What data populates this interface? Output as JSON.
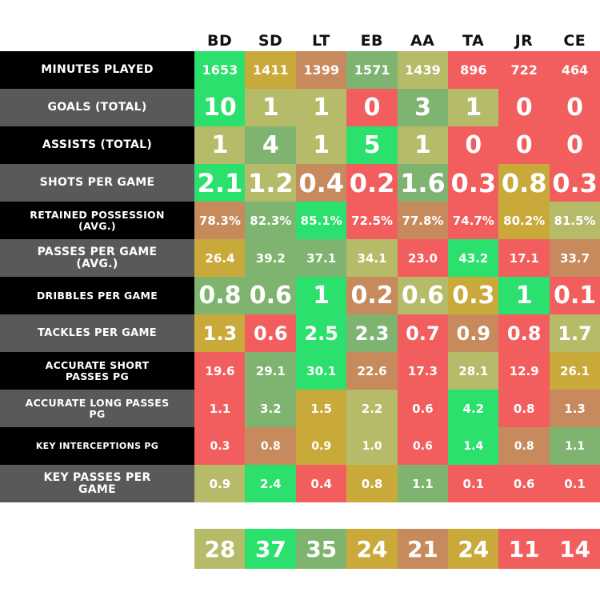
{
  "chart_data": {
    "type": "table",
    "players": [
      "BD",
      "SD",
      "LT",
      "EB",
      "AA",
      "TA",
      "JR",
      "CE"
    ],
    "rows": [
      {
        "label": "Minutes Played",
        "values": [
          "1653",
          "1411",
          "1399",
          "1571",
          "1439",
          "896",
          "722",
          "464"
        ],
        "colors": [
          "#2be06d",
          "#c9a93a",
          "#c78a5c",
          "#7eb46f",
          "#b6bb6a",
          "#f25d5d",
          "#f25d5d",
          "#f25d5d"
        ]
      },
      {
        "label": "Goals (Total)",
        "values": [
          "10",
          "1",
          "1",
          "0",
          "3",
          "1",
          "0",
          "0"
        ],
        "colors": [
          "#2be06d",
          "#b6bb6a",
          "#b6bb6a",
          "#f25d5d",
          "#7eb46f",
          "#b6bb6a",
          "#f25d5d",
          "#f25d5d"
        ]
      },
      {
        "label": "Assists (Total)",
        "values": [
          "1",
          "4",
          "1",
          "5",
          "1",
          "0",
          "0",
          "0"
        ],
        "colors": [
          "#b6bb6a",
          "#7eb46f",
          "#b6bb6a",
          "#2be06d",
          "#b6bb6a",
          "#f25d5d",
          "#f25d5d",
          "#f25d5d"
        ]
      },
      {
        "label": "Shots Per Game",
        "values": [
          "2.1",
          "1.2",
          "0.4",
          "0.2",
          "1.6",
          "0.3",
          "0.8",
          "0.3"
        ],
        "colors": [
          "#2be06d",
          "#b6bb6a",
          "#c78a5c",
          "#f25d5d",
          "#7eb46f",
          "#f25d5d",
          "#c9a93a",
          "#f25d5d"
        ]
      },
      {
        "label": "Retained Possession (Avg.)",
        "values": [
          "78.3%",
          "82.3%",
          "85.1%",
          "72.5%",
          "77.8%",
          "74.7%",
          "80.2%",
          "81.5%"
        ],
        "colors": [
          "#c78a5c",
          "#7eb46f",
          "#2be06d",
          "#f25d5d",
          "#c78a5c",
          "#f25d5d",
          "#c9a93a",
          "#b6bb6a"
        ]
      },
      {
        "label": "Passes Per Game (Avg.)",
        "values": [
          "26.4",
          "39.2",
          "37.1",
          "34.1",
          "23.0",
          "43.2",
          "17.1",
          "33.7"
        ],
        "colors": [
          "#c9a93a",
          "#7eb46f",
          "#7eb46f",
          "#b6bb6a",
          "#f25d5d",
          "#2be06d",
          "#f25d5d",
          "#c78a5c"
        ]
      },
      {
        "label": "Dribbles Per Game",
        "values": [
          "0.8",
          "0.6",
          "1",
          "0.2",
          "0.6",
          "0.3",
          "1",
          "0.1"
        ],
        "colors": [
          "#7eb46f",
          "#7eb46f",
          "#2be06d",
          "#c78a5c",
          "#b6bb6a",
          "#c9a93a",
          "#2be06d",
          "#f25d5d"
        ]
      },
      {
        "label": "Tackles Per Game",
        "values": [
          "1.3",
          "0.6",
          "2.5",
          "2.3",
          "0.7",
          "0.9",
          "0.8",
          "1.7"
        ],
        "colors": [
          "#c9a93a",
          "#f25d5d",
          "#2be06d",
          "#7eb46f",
          "#f25d5d",
          "#c78a5c",
          "#f25d5d",
          "#b6bb6a"
        ]
      },
      {
        "label": "Accurate Short Passes PG",
        "values": [
          "19.6",
          "29.1",
          "30.1",
          "22.6",
          "17.3",
          "28.1",
          "12.9",
          "26.1"
        ],
        "colors": [
          "#f25d5d",
          "#7eb46f",
          "#2be06d",
          "#c78a5c",
          "#f25d5d",
          "#b6bb6a",
          "#f25d5d",
          "#c9a93a"
        ]
      },
      {
        "label": "Accurate Long Passes PG",
        "values": [
          "1.1",
          "3.2",
          "1.5",
          "2.2",
          "0.6",
          "4.2",
          "0.8",
          "1.3"
        ],
        "colors": [
          "#f25d5d",
          "#7eb46f",
          "#c9a93a",
          "#b6bb6a",
          "#f25d5d",
          "#2be06d",
          "#f25d5d",
          "#c78a5c"
        ]
      },
      {
        "label": "Key Interceptions PG",
        "values": [
          "0.3",
          "0.8",
          "0.9",
          "1.0",
          "0.6",
          "1.4",
          "0.8",
          "1.1"
        ],
        "colors": [
          "#f25d5d",
          "#c78a5c",
          "#c9a93a",
          "#b6bb6a",
          "#f25d5d",
          "#2be06d",
          "#c78a5c",
          "#7eb46f"
        ]
      },
      {
        "label": "Key Passes Per Game",
        "values": [
          "0.9",
          "2.4",
          "0.4",
          "0.8",
          "1.1",
          "0.1",
          "0.6",
          "0.1"
        ],
        "colors": [
          "#b6bb6a",
          "#2be06d",
          "#f25d5d",
          "#c9a93a",
          "#7eb46f",
          "#f25d5d",
          "#f25d5d",
          "#f25d5d"
        ]
      }
    ],
    "totals": [
      "28",
      "37",
      "35",
      "24",
      "21",
      "24",
      "11",
      "14"
    ],
    "total_colors": [
      "#b6bb6a",
      "#2be06d",
      "#7eb46f",
      "#c9a93a",
      "#c78a5c",
      "#c9a93a",
      "#f25d5d",
      "#f25d5d"
    ],
    "label_backgrounds": [
      "#000000",
      "#595959"
    ]
  }
}
